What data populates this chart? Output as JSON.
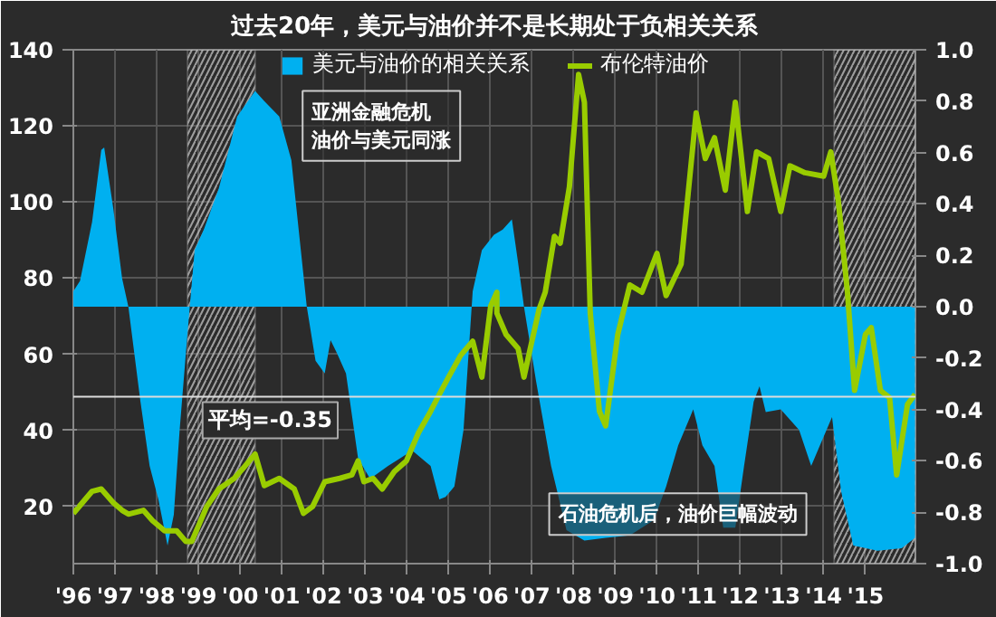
{
  "chart_data": {
    "type": "line",
    "title": "过去20年，美元与油价并不是长期处于负相关关系",
    "xlim": [
      1996,
      2016.2
    ],
    "xticks": [
      {
        "value": 1996,
        "label": "'96"
      },
      {
        "value": 1997,
        "label": "'97"
      },
      {
        "value": 1998,
        "label": "'98"
      },
      {
        "value": 1999,
        "label": "'99"
      },
      {
        "value": 2000,
        "label": "'00"
      },
      {
        "value": 2001,
        "label": "'01"
      },
      {
        "value": 2002,
        "label": "'02"
      },
      {
        "value": 2003,
        "label": "'03"
      },
      {
        "value": 2004,
        "label": "'04"
      },
      {
        "value": 2005,
        "label": "'05"
      },
      {
        "value": 2006,
        "label": "'06"
      },
      {
        "value": 2007,
        "label": "'07"
      },
      {
        "value": 2008,
        "label": "'08"
      },
      {
        "value": 2009,
        "label": "'09"
      },
      {
        "value": 2010,
        "label": "'10"
      },
      {
        "value": 2011,
        "label": "'11"
      },
      {
        "value": 2012,
        "label": "'12"
      },
      {
        "value": 2013,
        "label": "'13"
      },
      {
        "value": 2014,
        "label": "'14"
      },
      {
        "value": 2015,
        "label": "'15"
      }
    ],
    "ylim": [
      5,
      140
    ],
    "yticks": [
      20,
      40,
      60,
      80,
      100,
      120,
      140
    ],
    "y2lim": [
      -1,
      1
    ],
    "y2ticks": [
      {
        "value": -1,
        "label": "-1.0"
      },
      {
        "value": -0.8,
        "label": "-0.8"
      },
      {
        "value": -0.6,
        "label": "-0.6"
      },
      {
        "value": -0.4,
        "label": "-0.4"
      },
      {
        "value": -0.2,
        "label": "-0.2"
      },
      {
        "value": 0,
        "label": "0.0"
      },
      {
        "value": 0.2,
        "label": "0.2"
      },
      {
        "value": 0.4,
        "label": "0.4"
      },
      {
        "value": 0.6,
        "label": "0.6"
      },
      {
        "value": 0.8,
        "label": "0.8"
      },
      {
        "value": 1,
        "label": "1.0"
      }
    ],
    "grid": true,
    "legend": "top",
    "series": [
      {
        "name": "美元与油价的相关关系",
        "type": "area",
        "axis": "y2",
        "color": "#00b0f0",
        "x": [
          1996.0,
          1996.16,
          1996.45,
          1996.67,
          1996.74,
          1996.96,
          1997.17,
          1997.32,
          1997.61,
          1997.83,
          1998.04,
          1998.26,
          1998.41,
          1998.55,
          1998.74,
          1998.91,
          1999.13,
          1999.49,
          1999.93,
          2000.36,
          2000.58,
          2000.94,
          2001.23,
          2001.6,
          2001.81,
          2002.03,
          2002.17,
          2002.32,
          2002.54,
          2002.83,
          2003.12,
          2003.55,
          2004.13,
          2004.57,
          2004.78,
          2004.93,
          2005.14,
          2005.36,
          2005.58,
          2005.8,
          2006.09,
          2006.3,
          2006.52,
          2006.67,
          2006.81,
          2007.1,
          2007.46,
          2007.83,
          2008.26,
          2008.77,
          2009.35,
          2009.93,
          2010.22,
          2010.51,
          2010.87,
          2011.09,
          2011.38,
          2011.59,
          2011.88,
          2012.09,
          2012.32,
          2012.46,
          2012.61,
          2012.97,
          2013.41,
          2013.7,
          2013.91,
          2014.2,
          2014.42,
          2014.71,
          2015.29,
          2015.87,
          2016.19
        ],
        "values": [
          0.06,
          0.1,
          0.33,
          0.61,
          0.62,
          0.38,
          0.11,
          0,
          -0.37,
          -0.62,
          -0.75,
          -0.93,
          -0.81,
          -0.48,
          -0.1,
          0.22,
          0.3,
          0.46,
          0.74,
          0.84,
          0.8,
          0.74,
          0.57,
          0,
          -0.21,
          -0.26,
          -0.13,
          -0.18,
          -0.26,
          -0.59,
          -0.67,
          -0.62,
          -0.56,
          -0.62,
          -0.75,
          -0.74,
          -0.7,
          -0.48,
          0.06,
          0.22,
          0.28,
          0.3,
          0.34,
          0.17,
          0,
          -0.29,
          -0.62,
          -0.87,
          -0.91,
          -0.9,
          -0.89,
          -0.83,
          -0.7,
          -0.54,
          -0.4,
          -0.54,
          -0.62,
          -0.86,
          -0.86,
          -0.62,
          -0.37,
          -0.31,
          -0.41,
          -0.4,
          -0.48,
          -0.62,
          -0.54,
          -0.43,
          -0.72,
          -0.93,
          -0.95,
          -0.94,
          -0.9
        ]
      },
      {
        "name": "布伦特油价",
        "color": "#99cc00",
        "x": [
          1996.0,
          1996.45,
          1996.67,
          1996.96,
          1997.17,
          1997.32,
          1997.68,
          1997.9,
          1998.19,
          1998.48,
          1998.7,
          1998.84,
          1999.2,
          1999.49,
          1999.86,
          2000.07,
          2000.36,
          2000.58,
          2000.94,
          2001.3,
          2001.52,
          2001.74,
          2002.03,
          2002.39,
          2002.68,
          2002.83,
          2002.97,
          2003.19,
          2003.41,
          2003.7,
          2003.99,
          2004.28,
          2004.57,
          2004.78,
          2005.0,
          2005.29,
          2005.58,
          2005.8,
          2006.01,
          2006.16,
          2006.16,
          2006.38,
          2006.67,
          2006.81,
          2006.96,
          2007.17,
          2007.32,
          2007.54,
          2007.68,
          2007.9,
          2008.12,
          2008.26,
          2008.4,
          2008.62,
          2008.77,
          2009.06,
          2009.35,
          2009.64,
          2010.0,
          2010.22,
          2010.58,
          2010.94,
          2011.16,
          2011.38,
          2011.64,
          2011.88,
          2012.17,
          2012.39,
          2012.68,
          2012.97,
          2013.19,
          2013.55,
          2014.0,
          2014.17,
          2014.35,
          2014.57,
          2014.74,
          2015.0,
          2015.14,
          2015.36,
          2015.58,
          2015.75,
          2016.01,
          2016.19
        ],
        "values": [
          18.2,
          24,
          24.6,
          21,
          19,
          18,
          19,
          16.3,
          13.6,
          13.6,
          10.8,
          10.8,
          20,
          24.6,
          27.4,
          30,
          33.8,
          25.5,
          27.4,
          24.6,
          18.2,
          20,
          26.5,
          27.4,
          28.3,
          32,
          26.5,
          27.4,
          24.6,
          29.2,
          32,
          39.4,
          45,
          49.5,
          54,
          59.7,
          63.4,
          54,
          72.6,
          76.3,
          70.8,
          65.2,
          61.5,
          54,
          61.5,
          71.7,
          76.3,
          91,
          89.2,
          104,
          133.5,
          126.2,
          70.8,
          45,
          41.2,
          65.2,
          78.2,
          76.3,
          86.5,
          75.4,
          83.7,
          123.4,
          111.4,
          116.9,
          103.1,
          126.2,
          97.5,
          113.2,
          111.4,
          97.5,
          109.5,
          107.7,
          106.8,
          113.2,
          100.3,
          76.3,
          50.5,
          65.2,
          67,
          50.5,
          48.6,
          28.3,
          46.8,
          49.5
        ]
      }
    ],
    "bands": [
      {
        "axis": "x",
        "from": 1998.74,
        "to": 2000.36,
        "color": "#bbbbbb"
      },
      {
        "axis": "x",
        "from": 2014.25,
        "to": 2016.2,
        "color": "#bbbbbb"
      }
    ],
    "ref_lines": [
      {
        "axis": "y2",
        "value": -0.35,
        "label": "平均=-0.35",
        "color": "#dddddd"
      }
    ],
    "annotations": [
      "亚洲金融危机油价与美元同涨",
      "石油危机后，油价巨幅波动"
    ]
  }
}
